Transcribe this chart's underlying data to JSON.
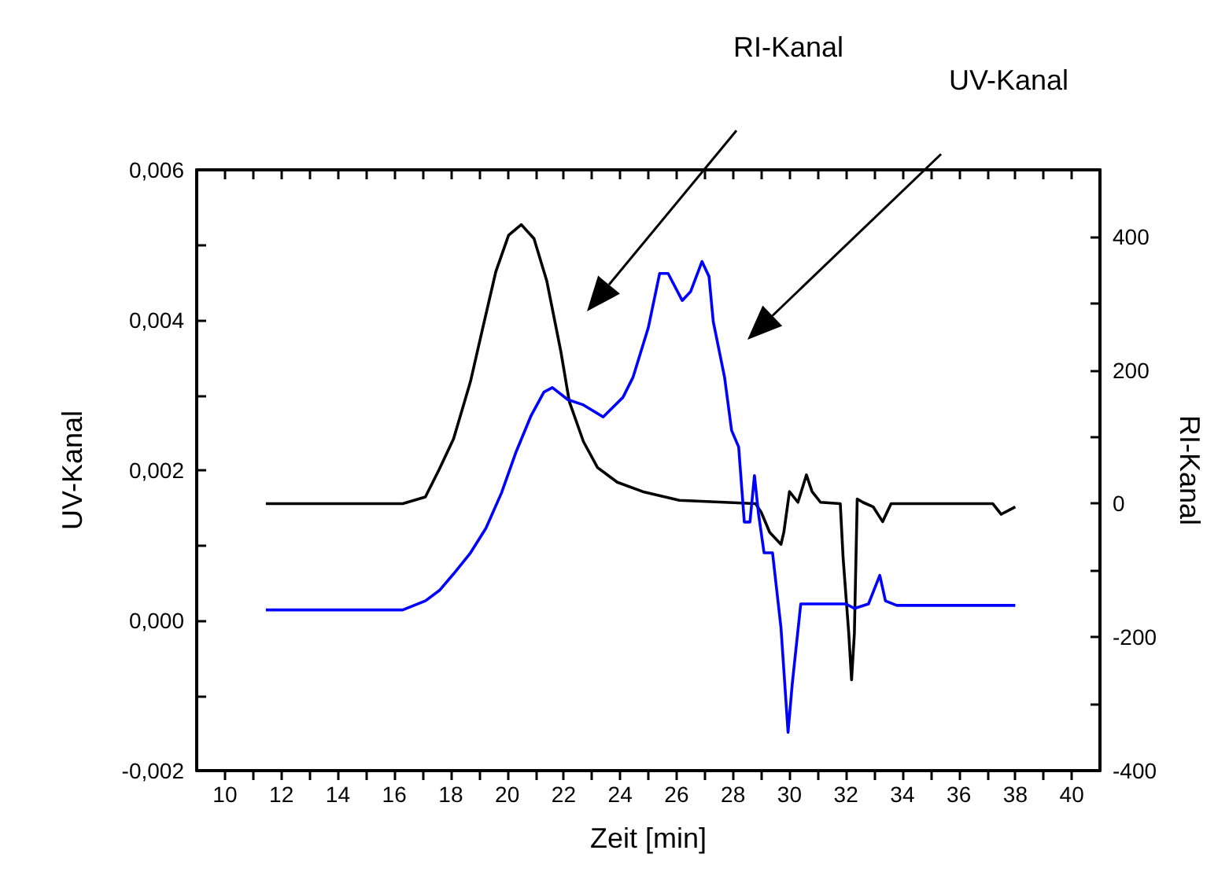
{
  "chart_data": {
    "type": "line",
    "xlabel": "Zeit [min]",
    "ylabel": "UV-Kanal",
    "y2label": "RI-Kanal",
    "xlim": [
      9,
      41
    ],
    "xticks": [
      10,
      {
        "value": 11,
        "label": null
      },
      12,
      {
        "value": 13,
        "label": null
      },
      14,
      {
        "value": 15,
        "label": null
      },
      16,
      {
        "value": 17,
        "label": null
      },
      18,
      {
        "value": 19,
        "label": null
      },
      20,
      {
        "value": 21,
        "label": null
      },
      22,
      {
        "value": 23,
        "label": null
      },
      24,
      {
        "value": 25,
        "label": null
      },
      26,
      {
        "value": 27,
        "label": null
      },
      28,
      {
        "value": 29,
        "label": null
      },
      30,
      {
        "value": 31,
        "label": null
      },
      32,
      {
        "value": 33,
        "label": null
      },
      34,
      {
        "value": 35,
        "label": null
      },
      36,
      {
        "value": 37,
        "label": null
      },
      38,
      {
        "value": 39,
        "label": null
      },
      40
    ],
    "ylim": [
      -0.002,
      0.006
    ],
    "yticks": [
      {
        "value": -0.002,
        "label": "-0,002"
      },
      {
        "value": -0.001,
        "label": null
      },
      {
        "value": 0,
        "label": "0,000"
      },
      {
        "value": 0.001,
        "label": null
      },
      {
        "value": 0.002,
        "label": "0,002"
      },
      {
        "value": 0.003,
        "label": null
      },
      {
        "value": 0.004,
        "label": "0,004"
      },
      {
        "value": 0.005,
        "label": null
      },
      {
        "value": 0.006,
        "label": "0,006"
      }
    ],
    "y2lim": [
      -400,
      500
    ],
    "y2ticks": [
      -400,
      {
        "value": -300,
        "label": null
      },
      -200,
      {
        "value": -100,
        "label": null
      },
      0,
      {
        "value": 100,
        "label": null
      },
      200,
      {
        "value": 300,
        "label": null
      },
      400
    ],
    "grid": false,
    "marker": "none",
    "line_style": "solid",
    "annotations": [
      "RI-Kanal",
      "UV-Kanal"
    ],
    "series": [
      {
        "color": "#000000",
        "axis": "y2",
        "x": [
          11.45,
          16.3,
          17.1,
          17.6,
          18.1,
          18.7,
          19.1,
          19.6,
          20.05,
          20.5,
          20.95,
          21.4,
          21.9,
          22.2,
          22.7,
          23.2,
          23.9,
          24.8,
          26.1,
          28.8,
          29.0,
          29.3,
          29.7,
          29.8,
          30.0,
          30.3,
          30.6,
          30.8,
          31.1,
          31.8,
          31.9,
          32.1,
          32.2,
          32.3,
          32.4,
          32.6,
          32.97,
          33.3,
          33.6,
          37.2,
          37.5,
          38.0
        ],
        "values": [
          0,
          0,
          10,
          52,
          97,
          183,
          257,
          348,
          402,
          418,
          397,
          334,
          228,
          153,
          93,
          54,
          32,
          18,
          5,
          0,
          -13,
          -43,
          -61,
          -43,
          18,
          2,
          43,
          18,
          2,
          0,
          -81,
          -194,
          -264,
          -194,
          7,
          2,
          -5,
          -27,
          0,
          0,
          -16,
          -5
        ]
      },
      {
        "color": "#0000ff",
        "x": [
          11.45,
          16.3,
          17.1,
          17.6,
          18.1,
          18.7,
          19.25,
          19.8,
          20.3,
          20.85,
          21.3,
          21.6,
          22.15,
          22.7,
          23.4,
          24.1,
          24.46,
          25.0,
          25.4,
          25.7,
          26.2,
          26.5,
          26.9,
          27.15,
          27.3,
          27.7,
          27.95,
          28.2,
          28.4,
          28.6,
          28.76,
          28.9,
          29.1,
          29.4,
          29.7,
          29.95,
          30.1,
          30.4,
          32.0,
          32.3,
          32.8,
          33.2,
          33.4,
          33.8,
          38.0
        ],
        "values": [
          0.00014,
          0.00014,
          0.00026,
          0.0004,
          0.00062,
          0.0009,
          0.00123,
          0.0017,
          0.00223,
          0.00273,
          0.00304,
          0.0031,
          0.00294,
          0.00287,
          0.00271,
          0.00297,
          0.00324,
          0.0039,
          0.00462,
          0.00462,
          0.00426,
          0.00438,
          0.00478,
          0.00458,
          0.00398,
          0.00324,
          0.00253,
          0.00231,
          0.00131,
          0.00131,
          0.00193,
          0.00143,
          0.0009,
          0.0009,
          -0.0001,
          -0.00149,
          -0.00084,
          0.00022,
          0.00022,
          0.00016,
          0.00022,
          0.0006,
          0.00026,
          0.0002,
          0.0002
        ]
      }
    ]
  }
}
